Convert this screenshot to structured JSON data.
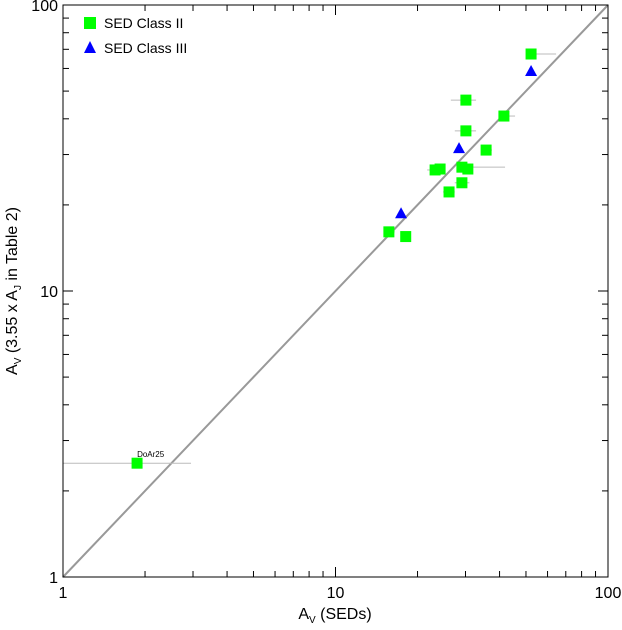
{
  "chart_data": {
    "type": "scatter",
    "title": "",
    "xlabel": "A_V (SEDs)",
    "xlabel_main": "A",
    "xlabel_sub": "V",
    "xlabel_rest": " (SEDs)",
    "ylabel_main": "A",
    "ylabel_sub": "V",
    "ylabel_mid": " (3.55 x A",
    "ylabel_sub2": "J",
    "ylabel_rest": " in Table 2)",
    "xscale": "log",
    "yscale": "log",
    "xlim": [
      1,
      100
    ],
    "ylim": [
      1,
      100
    ],
    "xticks": [
      "1",
      "10",
      "100"
    ],
    "yticks": [
      "1",
      "10",
      "100"
    ],
    "reference_line": "y = x",
    "legend": {
      "placement": "top-left",
      "entries": [
        "SED Class II",
        "SED Class III"
      ]
    },
    "colors": {
      "class2": "#00ff00",
      "class3": "#0000ff",
      "line": "#999999",
      "errbar": "#bbbbbb"
    },
    "series": [
      {
        "name": "SED Class II",
        "marker": "square",
        "points": [
          {
            "x": 52.2,
            "y": 67.4,
            "xerr": [
              52.2,
              64.5
            ]
          },
          {
            "x": 30.1,
            "y": 46.5,
            "xerr": [
              26.5,
              32.8
            ]
          },
          {
            "x": 41.5,
            "y": 40.9,
            "xerr": [
              41.5,
              45.6
            ]
          },
          {
            "x": 30.1,
            "y": 36.3,
            "xerr": [
              27.4,
              32.8
            ]
          },
          {
            "x": 35.7,
            "y": 31.1,
            "xerr": [
              35.7,
              37.5
            ]
          },
          {
            "x": 23.2,
            "y": 26.5,
            "xerr": [
              21.7,
              24.0
            ]
          },
          {
            "x": 24.2,
            "y": 26.7,
            "xerr": [
              24.2,
              24.2
            ]
          },
          {
            "x": 29.1,
            "y": 27.1,
            "xerr": [
              29.1,
              41.9
            ]
          },
          {
            "x": 30.6,
            "y": 26.7,
            "xerr": [
              30.6,
              30.6
            ]
          },
          {
            "x": 29.1,
            "y": 23.9,
            "xerr": [
              27.4,
              31.0
            ]
          },
          {
            "x": 26.1,
            "y": 22.2,
            "xerr": [
              24.8,
              27.4
            ]
          },
          {
            "x": 15.7,
            "y": 16.1,
            "xerr": [
              15.1,
              16.5
            ]
          },
          {
            "x": 18.1,
            "y": 15.5,
            "xerr": [
              18.1,
              18.1
            ]
          },
          {
            "x": 1.87,
            "y": 2.5,
            "xerr": [
              1.0,
              2.95
            ],
            "label": "DoAr25"
          }
        ]
      },
      {
        "name": "SED Class III",
        "marker": "triangle",
        "points": [
          {
            "x": 52.2,
            "y": 58.8
          },
          {
            "x": 28.4,
            "y": 31.6
          },
          {
            "x": 17.4,
            "y": 18.7
          }
        ]
      }
    ]
  }
}
